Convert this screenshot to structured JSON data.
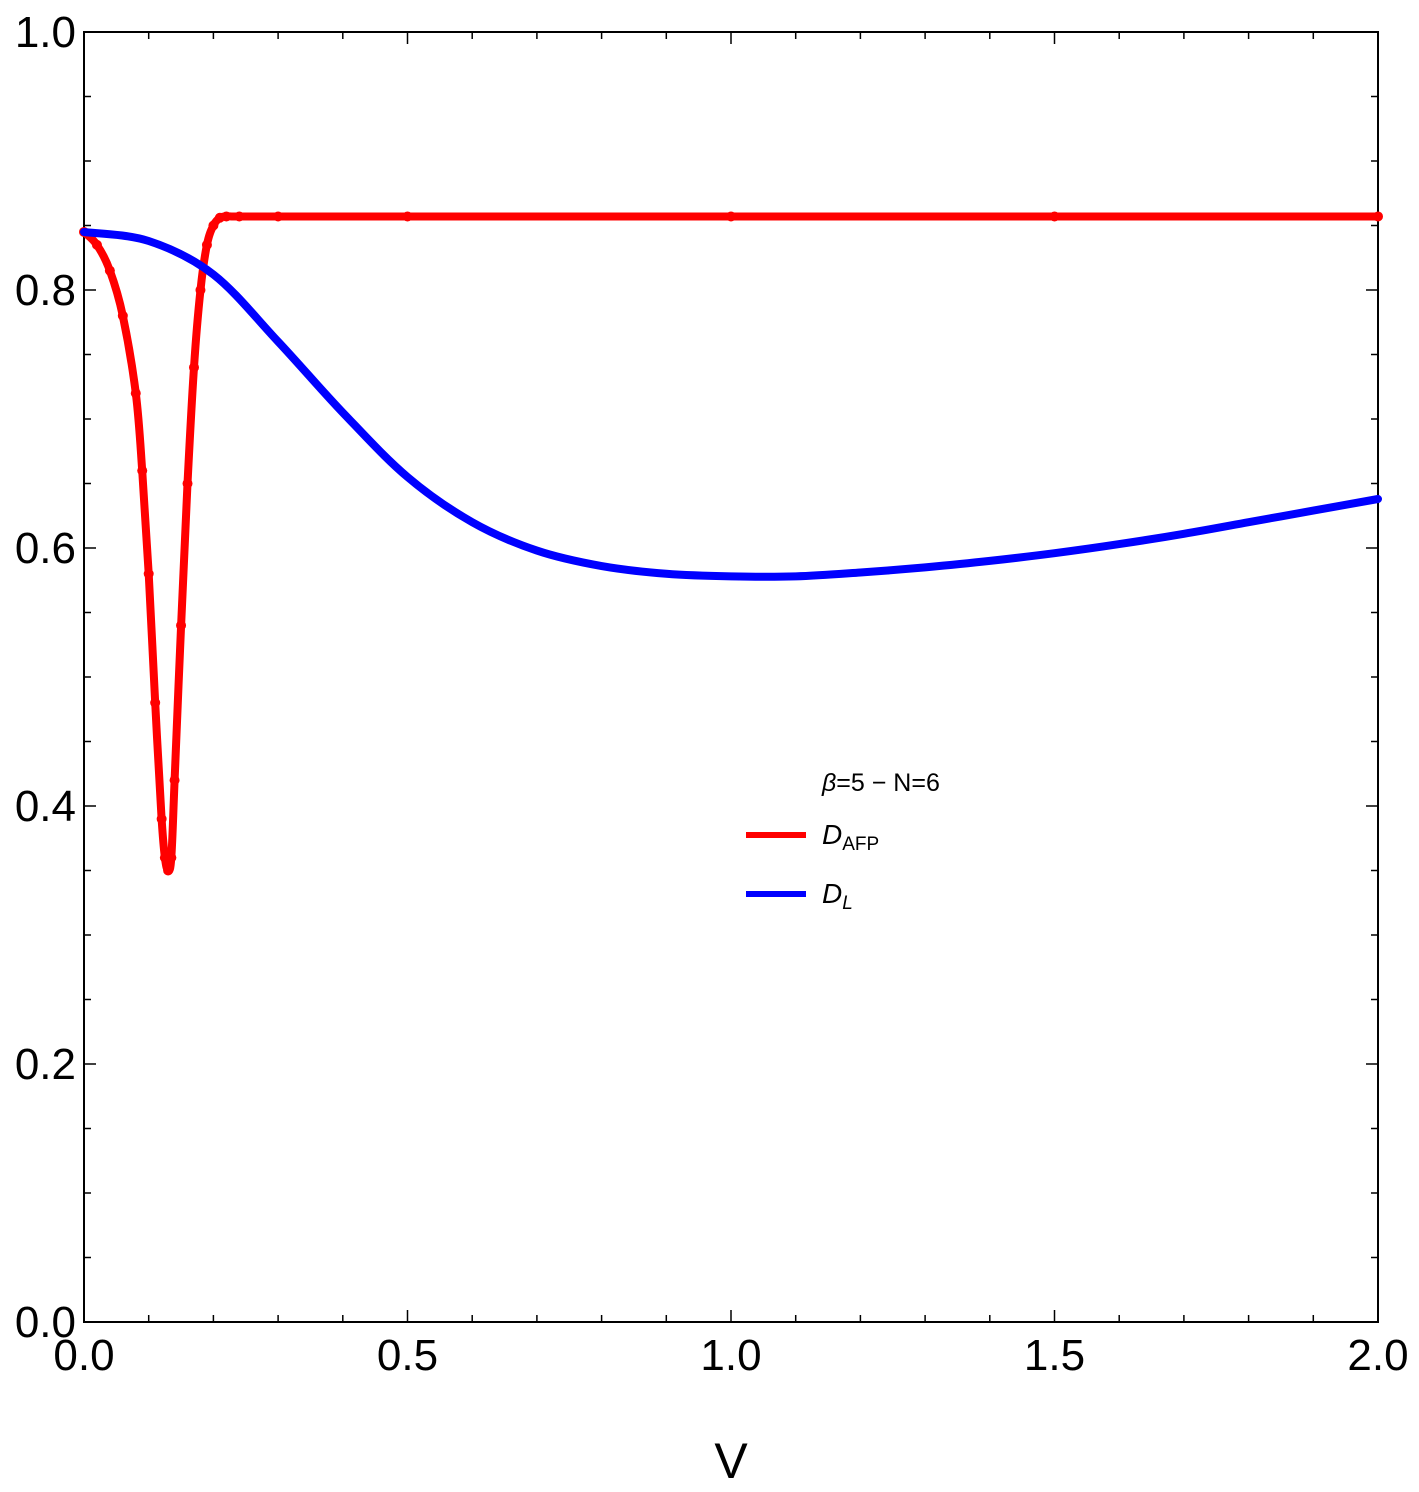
{
  "chart_data": {
    "type": "line",
    "title": "",
    "xlabel": "V",
    "ylabel": "",
    "xlim": [
      0.0,
      2.0
    ],
    "ylim": [
      0.0,
      1.0
    ],
    "x_ticks": [
      "0.0",
      "0.5",
      "1.0",
      "1.5",
      "2.0"
    ],
    "y_ticks": [
      "0.0",
      "0.2",
      "0.4",
      "0.6",
      "0.8",
      "1.0"
    ],
    "grid": false,
    "legend": {
      "placement": "center-right",
      "title": {
        "prefix": "β",
        "rest": "=5 − N=6"
      },
      "entries": [
        {
          "base": "D",
          "sub": "AFP",
          "sub_italic": false,
          "color": "#ff0000"
        },
        {
          "base": "D",
          "sub": "L",
          "sub_italic": true,
          "color": "#0000ff"
        }
      ]
    },
    "series": [
      {
        "id": "afp",
        "color": "#ff0000",
        "markers": true,
        "x": [
          0.0,
          0.02,
          0.04,
          0.06,
          0.08,
          0.09,
          0.1,
          0.11,
          0.12,
          0.125,
          0.13,
          0.135,
          0.14,
          0.15,
          0.16,
          0.17,
          0.18,
          0.19,
          0.2,
          0.21,
          0.22,
          0.24,
          0.3,
          0.5,
          1.0,
          1.5,
          2.0
        ],
        "y": [
          0.845,
          0.835,
          0.815,
          0.78,
          0.72,
          0.66,
          0.58,
          0.48,
          0.39,
          0.36,
          0.35,
          0.36,
          0.42,
          0.54,
          0.65,
          0.74,
          0.8,
          0.835,
          0.85,
          0.856,
          0.857,
          0.857,
          0.857,
          0.857,
          0.857,
          0.857,
          0.857
        ]
      },
      {
        "id": "l",
        "color": "#0000ff",
        "markers": false,
        "x": [
          0.0,
          0.1,
          0.2,
          0.3,
          0.4,
          0.5,
          0.6,
          0.7,
          0.8,
          0.9,
          1.0,
          1.1,
          1.2,
          1.3,
          1.4,
          1.5,
          1.6,
          1.7,
          1.8,
          1.9,
          2.0
        ],
        "y": [
          0.845,
          0.838,
          0.812,
          0.76,
          0.705,
          0.655,
          0.62,
          0.598,
          0.586,
          0.58,
          0.578,
          0.578,
          0.581,
          0.585,
          0.59,
          0.596,
          0.603,
          0.611,
          0.62,
          0.629,
          0.638
        ]
      }
    ]
  }
}
